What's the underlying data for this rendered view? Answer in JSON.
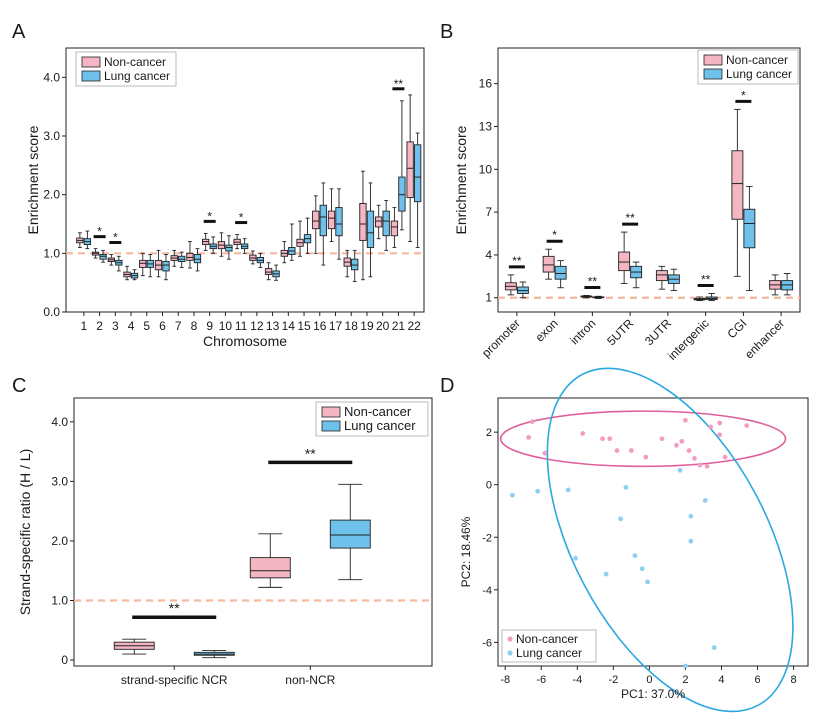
{
  "colors": {
    "noncancer": "#f4b6c2",
    "lung": "#6ec1ea",
    "refline": "#f5b7a0",
    "ellipse_noncancer": "#e0609c",
    "ellipse_lung": "#2ba8df",
    "pt_noncancer": "#f49cc3",
    "pt_lung": "#8fd0f0"
  },
  "legend": {
    "noncancer": "Non-cancer",
    "lung": "Lung cancer"
  },
  "chart_data": [
    {
      "panel": "A",
      "type": "box",
      "xlabel": "Chromosome",
      "ylabel": "Enrichment score",
      "ylim": [
        0.0,
        4.5
      ],
      "yticks": [
        "0.0",
        "1.0",
        "2.0",
        "3.0",
        "4.0"
      ],
      "refline": 1.0,
      "categories": [
        "1",
        "2",
        "3",
        "4",
        "5",
        "6",
        "7",
        "8",
        "9",
        "10",
        "11",
        "12",
        "13",
        "14",
        "15",
        "16",
        "17",
        "18",
        "19",
        "20",
        "21",
        "22"
      ],
      "significance": [
        "",
        "*",
        "*",
        "",
        "",
        "",
        "",
        "",
        "*",
        "",
        "*",
        "",
        "",
        "",
        "",
        "",
        "",
        "",
        "",
        "",
        "**",
        ""
      ],
      "series": [
        {
          "name": "Non-cancer",
          "boxes": [
            [
              1.1,
              1.18,
              1.22,
              1.26,
              1.35
            ],
            [
              0.92,
              0.97,
              1.0,
              1.02,
              1.08
            ],
            [
              0.8,
              0.86,
              0.89,
              0.92,
              0.98
            ],
            [
              0.55,
              0.6,
              0.64,
              0.68,
              0.78
            ],
            [
              0.62,
              0.76,
              0.83,
              0.88,
              1.0
            ],
            [
              0.6,
              0.72,
              0.8,
              0.88,
              1.05
            ],
            [
              0.78,
              0.88,
              0.92,
              0.96,
              1.05
            ],
            [
              0.75,
              0.88,
              0.93,
              1.0,
              1.2
            ],
            [
              1.05,
              1.15,
              1.2,
              1.24,
              1.34
            ],
            [
              0.95,
              1.08,
              1.14,
              1.2,
              1.35
            ],
            [
              1.08,
              1.15,
              1.19,
              1.24,
              1.32
            ],
            [
              0.82,
              0.88,
              0.92,
              0.97,
              1.04
            ],
            [
              0.55,
              0.64,
              0.68,
              0.74,
              0.84
            ],
            [
              0.84,
              0.95,
              1.0,
              1.05,
              1.2
            ],
            [
              0.95,
              1.12,
              1.18,
              1.24,
              1.55
            ],
            [
              1.0,
              1.42,
              1.55,
              1.72,
              1.98
            ],
            [
              1.2,
              1.42,
              1.6,
              1.72,
              2.1
            ],
            [
              0.6,
              0.78,
              0.85,
              0.92,
              1.05
            ],
            [
              0.55,
              1.22,
              1.5,
              1.85,
              2.4
            ],
            [
              1.25,
              1.45,
              1.55,
              1.62,
              1.82
            ],
            [
              1.1,
              1.3,
              1.45,
              1.55,
              1.78
            ],
            [
              1.2,
              1.95,
              2.45,
              2.9,
              3.7
            ]
          ]
        },
        {
          "name": "Lung cancer",
          "boxes": [
            [
              1.08,
              1.15,
              1.2,
              1.25,
              1.38
            ],
            [
              0.85,
              0.9,
              0.95,
              0.98,
              1.05
            ],
            [
              0.7,
              0.8,
              0.84,
              0.88,
              0.95
            ],
            [
              0.55,
              0.58,
              0.62,
              0.66,
              0.72
            ],
            [
              0.6,
              0.76,
              0.82,
              0.88,
              0.98
            ],
            [
              0.55,
              0.7,
              0.8,
              0.86,
              0.98
            ],
            [
              0.76,
              0.86,
              0.9,
              0.95,
              1.02
            ],
            [
              0.7,
              0.84,
              0.9,
              0.98,
              1.08
            ],
            [
              1.0,
              1.08,
              1.12,
              1.16,
              1.28
            ],
            [
              0.9,
              1.04,
              1.1,
              1.14,
              1.3
            ],
            [
              1.0,
              1.08,
              1.12,
              1.16,
              1.25
            ],
            [
              0.76,
              0.84,
              0.88,
              0.93,
              1.0
            ],
            [
              0.54,
              0.6,
              0.65,
              0.7,
              0.8
            ],
            [
              0.88,
              0.98,
              1.04,
              1.1,
              1.5
            ],
            [
              1.0,
              1.18,
              1.25,
              1.32,
              1.6
            ],
            [
              0.8,
              1.3,
              1.62,
              1.82,
              2.2
            ],
            [
              0.9,
              1.3,
              1.5,
              1.78,
              2.1
            ],
            [
              0.52,
              0.72,
              0.8,
              0.9,
              1.05
            ],
            [
              0.6,
              1.1,
              1.35,
              1.72,
              2.2
            ],
            [
              1.05,
              1.3,
              1.55,
              1.72,
              1.9
            ],
            [
              1.4,
              1.72,
              2.0,
              2.3,
              3.6
            ],
            [
              1.1,
              1.88,
              2.3,
              2.85,
              3.05
            ]
          ]
        }
      ]
    },
    {
      "panel": "B",
      "type": "box",
      "xlabel": "",
      "ylabel": "Enrichment score",
      "yticks": [
        "1",
        "4",
        "7",
        "10",
        "13",
        "16"
      ],
      "ylim": [
        0,
        18.5
      ],
      "refline": 1,
      "categories": [
        "promoter",
        "exon",
        "intron",
        "5UTR",
        "3UTR",
        "intergenic",
        "CGI",
        "enhancer"
      ],
      "significance": [
        "**",
        "*",
        "**",
        "**",
        "",
        "**",
        "*",
        ""
      ],
      "series": [
        {
          "name": "Non-cancer",
          "boxes": [
            [
              1.2,
              1.55,
              1.8,
              2.05,
              2.6
            ],
            [
              2.3,
              2.8,
              3.3,
              3.9,
              4.4
            ],
            [
              1.0,
              1.05,
              1.08,
              1.12,
              1.16
            ],
            [
              2.0,
              2.9,
              3.5,
              4.2,
              5.6
            ],
            [
              1.6,
              2.2,
              2.6,
              2.9,
              3.2
            ],
            [
              0.8,
              0.85,
              0.88,
              0.95,
              1.05
            ],
            [
              2.5,
              6.5,
              9.0,
              11.3,
              14.2
            ],
            [
              1.2,
              1.6,
              1.9,
              2.2,
              2.6
            ]
          ]
        },
        {
          "name": "Lung cancer",
          "boxes": [
            [
              1.0,
              1.3,
              1.5,
              1.75,
              2.1
            ],
            [
              1.7,
              2.3,
              2.7,
              3.2,
              3.6
            ],
            [
              0.95,
              1.0,
              1.03,
              1.06,
              1.1
            ],
            [
              1.7,
              2.4,
              2.8,
              3.2,
              3.5
            ],
            [
              1.5,
              2.0,
              2.3,
              2.6,
              3.0
            ],
            [
              0.8,
              0.88,
              0.95,
              1.05,
              1.3
            ],
            [
              1.5,
              4.5,
              6.2,
              7.2,
              8.8
            ],
            [
              1.2,
              1.55,
              1.9,
              2.2,
              2.7
            ]
          ]
        }
      ]
    },
    {
      "panel": "C",
      "type": "box",
      "xlabel": "",
      "ylabel": "Strand-specific ratio (H / L)",
      "yticks": [
        "0",
        "1.0",
        "2.0",
        "3.0",
        "4.0"
      ],
      "ylim": [
        -0.1,
        4.4
      ],
      "refline": 1.0,
      "categories": [
        "strand-specific NCR",
        "non-NCR"
      ],
      "significance": [
        "**",
        "**"
      ],
      "series": [
        {
          "name": "Non-cancer",
          "boxes": [
            [
              0.1,
              0.18,
              0.24,
              0.3,
              0.35
            ],
            [
              1.22,
              1.38,
              1.5,
              1.72,
              2.12
            ]
          ]
        },
        {
          "name": "Lung cancer",
          "boxes": [
            [
              0.04,
              0.08,
              0.1,
              0.13,
              0.16
            ],
            [
              1.35,
              1.88,
              2.1,
              2.35,
              2.95
            ]
          ]
        }
      ]
    },
    {
      "panel": "D",
      "type": "scatter",
      "xlabel": "PC1: 37.0%",
      "ylabel": "PC2: 18.46%",
      "xlim": [
        -8.4,
        8.8
      ],
      "ylim": [
        -6.9,
        3.3
      ],
      "xticks": [
        "-8",
        "-6",
        "-4",
        "-2",
        "0",
        "2",
        "4",
        "6",
        "8"
      ],
      "yticks": [
        "-6",
        "-4",
        "-2",
        "0",
        "2"
      ],
      "series": [
        {
          "name": "Non-cancer",
          "points": [
            [
              -6.5,
              2.4
            ],
            [
              -6.7,
              1.8
            ],
            [
              -5.8,
              1.2
            ],
            [
              -3.7,
              1.95
            ],
            [
              -2.6,
              1.75
            ],
            [
              -2.2,
              1.75
            ],
            [
              -1.8,
              1.3
            ],
            [
              -1.0,
              1.3
            ],
            [
              -0.2,
              1.05
            ],
            [
              0.7,
              1.75
            ],
            [
              1.5,
              1.5
            ],
            [
              1.8,
              1.65
            ],
            [
              2.0,
              2.45
            ],
            [
              2.2,
              1.3
            ],
            [
              2.5,
              1.0
            ],
            [
              2.8,
              0.75
            ],
            [
              3.2,
              0.7
            ],
            [
              3.4,
              2.2
            ],
            [
              3.9,
              1.9
            ],
            [
              3.9,
              2.35
            ],
            [
              4.2,
              1.05
            ],
            [
              5.4,
              2.25
            ]
          ]
        },
        {
          "name": "Lung cancer",
          "points": [
            [
              -7.6,
              -0.4
            ],
            [
              -6.2,
              -0.25
            ],
            [
              -4.5,
              -0.2
            ],
            [
              -4.1,
              -2.8
            ],
            [
              -2.4,
              -3.4
            ],
            [
              -1.3,
              -0.1
            ],
            [
              -1.6,
              -1.3
            ],
            [
              -0.8,
              -2.7
            ],
            [
              -0.4,
              -3.2
            ],
            [
              -0.1,
              -3.7
            ],
            [
              1.7,
              0.55
            ],
            [
              2.3,
              -1.2
            ],
            [
              2.3,
              -2.15
            ],
            [
              3.1,
              -0.6
            ],
            [
              3.6,
              -6.2
            ],
            [
              2.0,
              -6.9
            ]
          ]
        }
      ],
      "ellipses": [
        {
          "name": "Non-cancer",
          "cx": -0.35,
          "cy": 1.75,
          "rx": 7.9,
          "ry": 1.05,
          "angle": 0
        },
        {
          "name": "Lung cancer",
          "cx": 1.15,
          "cy": -2.1,
          "rx": 6.9,
          "ry": 4.6,
          "angle": -72
        }
      ]
    }
  ],
  "panel_labels": [
    "A",
    "B",
    "C",
    "D"
  ]
}
